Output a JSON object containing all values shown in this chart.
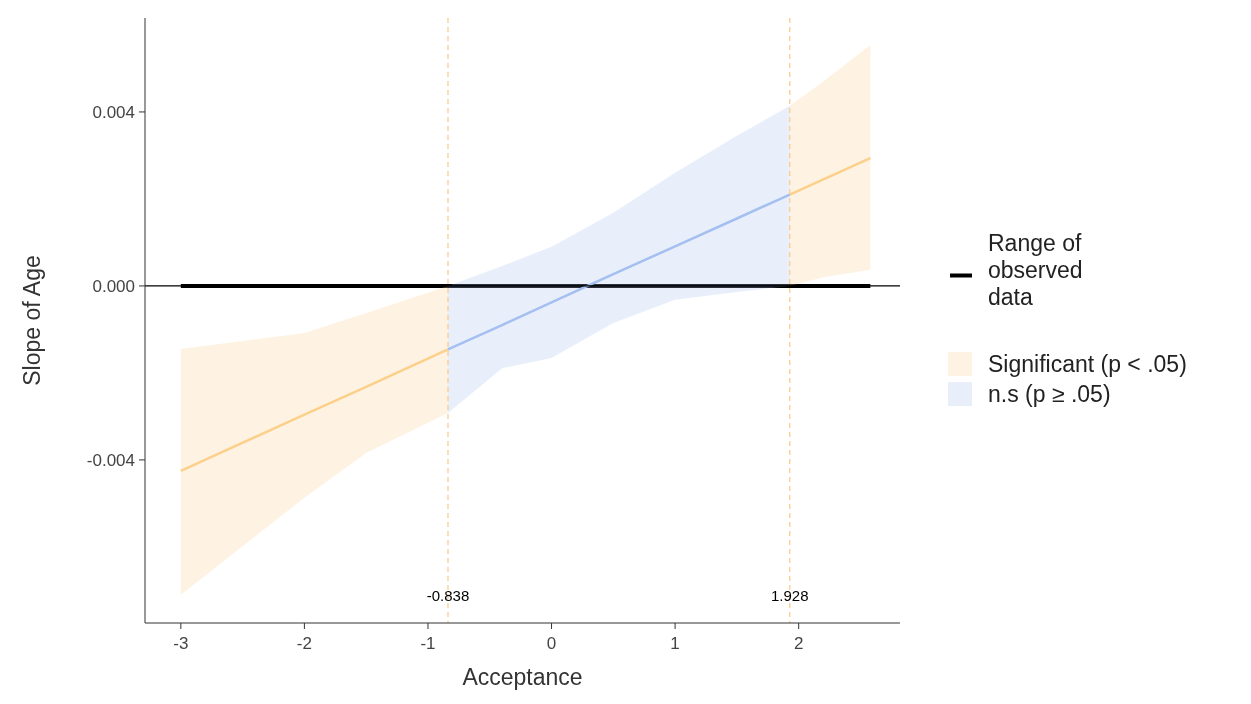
{
  "chart_data": {
    "type": "line",
    "xlabel": "Acceptance",
    "ylabel": "Slope of Age",
    "xlim": [
      -3.29,
      2.82
    ],
    "ylim": [
      -0.00775,
      0.00616
    ],
    "xticks": [
      -3,
      -2,
      -1,
      0,
      1,
      2
    ],
    "yticks": [
      -0.004,
      {
        "value": 0,
        "label": "0.000"
      },
      0.004
    ],
    "grid": false,
    "legend": "right",
    "series": [
      {
        "name": "Range of observed data",
        "color": "#000000",
        "x": [
          -3,
          2.58
        ],
        "values": [
          0,
          0
        ]
      },
      {
        "name": "Significant (p < .05)",
        "color": "#fccf8a",
        "x": [
          -3,
          -2,
          -1.5,
          -0.838,
          0,
          1.928,
          2.2,
          2.58
        ],
        "values": [
          -0.00425,
          -0.00296,
          -0.00232,
          -0.00146,
          null,
          0.0021,
          0.00245,
          0.00294
        ],
        "lower": [
          -0.0071,
          -0.00487,
          -0.00384,
          -0.00292,
          null,
          0,
          0.0002,
          0.00037
        ],
        "upper": [
          -0.00145,
          -0.00108,
          -0.00062,
          0,
          null,
          0.00414,
          0.0047,
          0.00554
        ]
      },
      {
        "name": "n.s (p ≥ .05)",
        "color": "#a4bff0",
        "x": [
          -0.838,
          -0.4,
          0,
          0.5,
          1,
          1.5,
          1.928
        ],
        "values": [
          -0.00146,
          -0.0009,
          -0.00038,
          0.00027,
          0.00091,
          0.00155,
          0.0021
        ],
        "lower": [
          -0.00292,
          -0.00189,
          -0.00166,
          -0.00085,
          -0.00032,
          -0.00014,
          0
        ],
        "upper": [
          0,
          0.00046,
          0.0009,
          0.00168,
          0.0026,
          0.00345,
          0.00414
        ]
      }
    ],
    "ref_lines": [
      {
        "axis": "y",
        "value": 0,
        "color": "#000000",
        "line_style": "solid"
      },
      {
        "axis": "x",
        "value": -0.838,
        "label": "-0.838",
        "color": "#fcc88a",
        "line_style": "dashed"
      },
      {
        "axis": "x",
        "value": 1.928,
        "label": "1.928",
        "color": "#fcc88a",
        "line_style": "dashed"
      }
    ]
  }
}
